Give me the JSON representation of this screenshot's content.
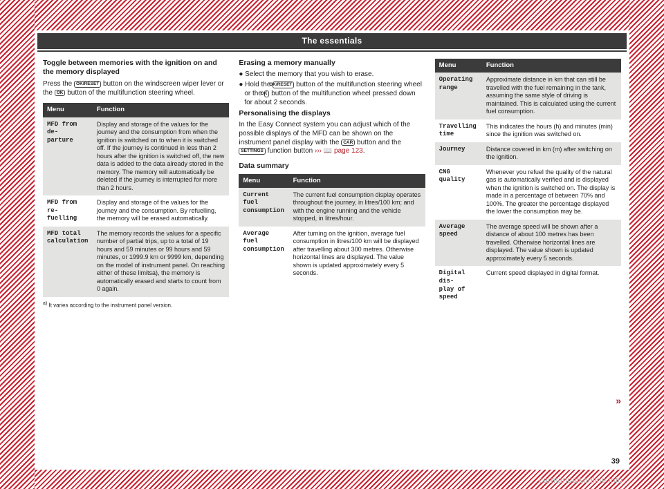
{
  "page_title": "The essentials",
  "page_number": "39",
  "watermark": "carmanualsonline.info",
  "continue_mark": "»",
  "buttons": {
    "okreset": "OK/RESET",
    "ok": "OK",
    "car": "CAR",
    "settings": "SETTINGS"
  },
  "col1": {
    "h1": "Toggle between memories with the ignition on and the memory displayed",
    "p1a": "Press the ",
    "p1b": " button on the windscreen wiper lever or the ",
    "p1c": " button of the multifunction steering wheel.",
    "table": {
      "head_menu": "Menu",
      "head_func": "Function",
      "r1_menu": "MFD from de-\nparture",
      "r1_func": "Display and storage of the values for the journey and the consumption from when the ignition is switched on to when it is switched off.\nIf the journey is continued in less than 2 hours after the ignition is switched off, the new data is added to the data already stored in the memory. The memory will automatically be deleted if the journey is interrupted for more than 2 hours.",
      "r2_menu": "MFD from re-\nfuelling",
      "r2_func": "Display and storage of the values for the journey and the consumption. By refuelling, the memory will be erased automatically.",
      "r3_menu": "MFD total\ncalculation",
      "r3_func": "The memory records the values for a specific number of partial trips, up to a total of 19 hours and 59 minutes or 99 hours and 59 minutes, or 1999.9 km or 9999 km, depending on the model of instrument panel. On reaching either of these limitsa), the memory is automatically erased and starts to count from 0 again."
    },
    "footnote_label": "a)",
    "footnote_text": "It varies according to the instrument panel version."
  },
  "col2": {
    "h1": "Erasing a memory manually",
    "b1": "● Select the memory that you wish to erase.",
    "b2a": "● Hold the ",
    "b2b": " button of the multifunction steering wheel or the ",
    "b2c": " button of the multifunction wheel pressed down for about 2 seconds.",
    "h2": "Personalising the displays",
    "p2a": "In the Easy Connect system you can adjust which of the possible displays of the MFD can be shown on the instrument panel display with the ",
    "p2b": " button and the ",
    "p2c": " function button ",
    "p2link": "››› 📖 page 123",
    "p2d": ".",
    "h3": "Data summary",
    "table": {
      "head_menu": "Menu",
      "head_func": "Function",
      "r1_menu": "Current fuel\nconsumption",
      "r1_func": "The current fuel consumption display operates throughout the journey, in litres/100 km; and with the engine running and the vehicle stopped, in litres/hour.",
      "r2_menu": "Average fuel\nconsumption",
      "r2_func": "After turning on the ignition, average fuel consumption in litres/100 km will be displayed after travelling about 300 metres. Otherwise horizontal lines are displayed. The value shown is updated approximately every 5 seconds."
    }
  },
  "col3": {
    "table": {
      "head_menu": "Menu",
      "head_func": "Function",
      "r1_menu": "Operating\nrange",
      "r1_func": "Approximate distance in km that can still be travelled with the fuel remaining in the tank, assuming the same style of driving is maintained. This is calculated using the current fuel consumption.",
      "r2_menu": "Travelling\ntime",
      "r2_func": "This indicates the hours (h) and minutes (min) since the ignition was switched on.",
      "r3_menu": "Journey",
      "r3_func": "Distance covered in km (m) after switching on the ignition.",
      "r4_menu": "CNG quality",
      "r4_func": "Whenever you refuel the quality of the natural gas is automatically verified and is displayed when the ignition is switched on. The display is made in a percentage of between 70% and 100%. The greater the percentage displayed the lower the consumption may be.",
      "r5_menu": "Average speed",
      "r5_func": "The average speed will be shown after a distance of about 100 metres has been travelled. Otherwise horizontal lines are displayed. The value shown is updated approximately every 5 seconds.",
      "r6_menu": "Digital dis-\nplay of speed",
      "r6_func": "Current speed displayed in digital format."
    }
  }
}
